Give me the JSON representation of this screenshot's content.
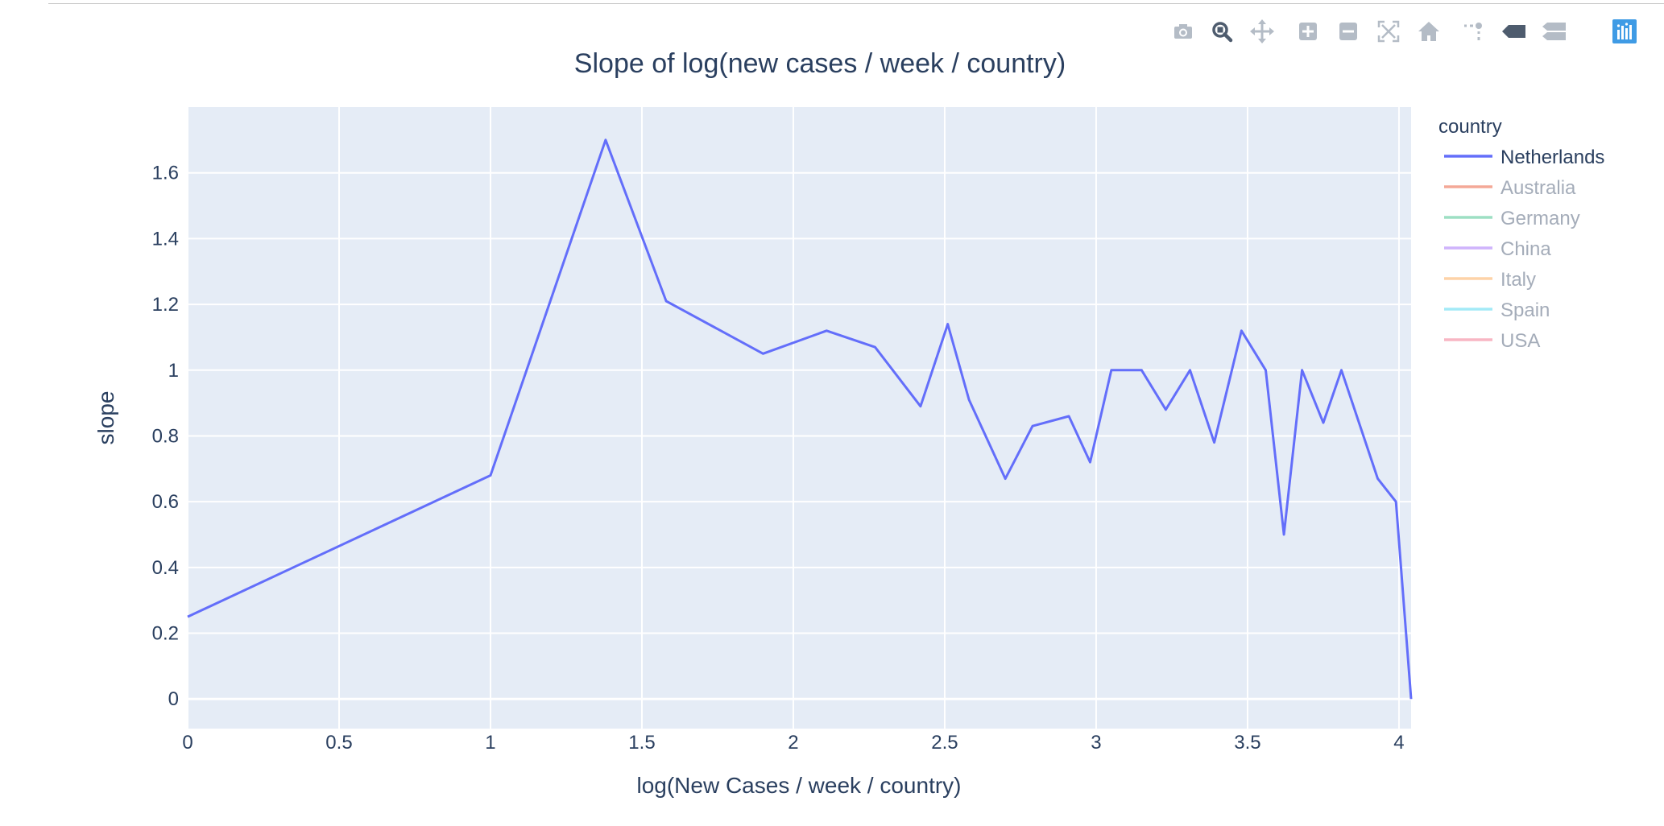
{
  "modebar": {
    "buttons": [
      {
        "name": "camera-icon"
      },
      {
        "name": "zoom-icon"
      },
      {
        "name": "pan-icon"
      },
      {
        "name": "zoom-in-icon"
      },
      {
        "name": "zoom-out-icon"
      },
      {
        "name": "autoscale-icon"
      },
      {
        "name": "reset-axes-icon"
      },
      {
        "name": "spike-lines-icon"
      },
      {
        "name": "hover-closest-icon"
      },
      {
        "name": "hover-compare-icon"
      },
      {
        "name": "plotly-logo-icon"
      }
    ]
  },
  "chart_data": {
    "type": "line",
    "title": "Slope of log(new cases / week / country)",
    "xlabel": "log(New Cases / week / country)",
    "ylabel": "slope",
    "xlim": [
      0,
      4.04
    ],
    "ylim": [
      -0.09,
      1.8
    ],
    "xticks": [
      "0",
      "0.5",
      "1",
      "1.5",
      "2",
      "2.5",
      "3",
      "3.5",
      "4"
    ],
    "xtick_values": [
      0,
      0.5,
      1,
      1.5,
      2,
      2.5,
      3,
      3.5,
      4
    ],
    "yticks": [
      "0",
      "0.2",
      "0.4",
      "0.6",
      "0.8",
      "1",
      "1.2",
      "1.4",
      "1.6"
    ],
    "ytick_values": [
      0,
      0.2,
      0.4,
      0.6,
      0.8,
      1,
      1.2,
      1.4,
      1.6
    ],
    "grid": true,
    "legend": {
      "title": "country",
      "placement": "right"
    },
    "series": [
      {
        "name": "Netherlands",
        "color": "#636efa",
        "visible": true,
        "x": [
          0,
          1.0,
          1.38,
          1.58,
          1.9,
          2.11,
          2.27,
          2.42,
          2.51,
          2.58,
          2.7,
          2.79,
          2.91,
          2.98,
          3.05,
          3.15,
          3.23,
          3.31,
          3.39,
          3.48,
          3.56,
          3.62,
          3.68,
          3.75,
          3.81,
          3.93,
          3.99,
          4.04
        ],
        "y": [
          0.25,
          0.68,
          1.7,
          1.21,
          1.05,
          1.12,
          1.07,
          0.89,
          1.14,
          0.91,
          0.67,
          0.83,
          0.86,
          0.72,
          1.0,
          1.0,
          0.88,
          1.0,
          0.78,
          1.12,
          1.0,
          0.5,
          1.0,
          0.84,
          1.0,
          0.67,
          0.6,
          0.0
        ]
      },
      {
        "name": "Australia",
        "color": "#f4a897",
        "visible": false,
        "x": [],
        "y": []
      },
      {
        "name": "Germany",
        "color": "#9ddfc3",
        "visible": false,
        "x": [],
        "y": []
      },
      {
        "name": "China",
        "color": "#cfb4fc",
        "visible": false,
        "x": [],
        "y": []
      },
      {
        "name": "Italy",
        "color": "#fdd3a8",
        "visible": false,
        "x": [],
        "y": []
      },
      {
        "name": "Spain",
        "color": "#a3eaf7",
        "visible": false,
        "x": [],
        "y": []
      },
      {
        "name": "USA",
        "color": "#f8b6c3",
        "visible": false,
        "x": [],
        "y": []
      }
    ],
    "colors": {
      "plot_bg": "#e5ecf6",
      "grid": "#ffffff",
      "text": "#2a3f5f",
      "hidden_text": "#a4acb9",
      "modebar_icon": "#b4bcc6",
      "modebar_active": "#4e5c6e",
      "plotly_logo": "#3f9be5"
    }
  }
}
